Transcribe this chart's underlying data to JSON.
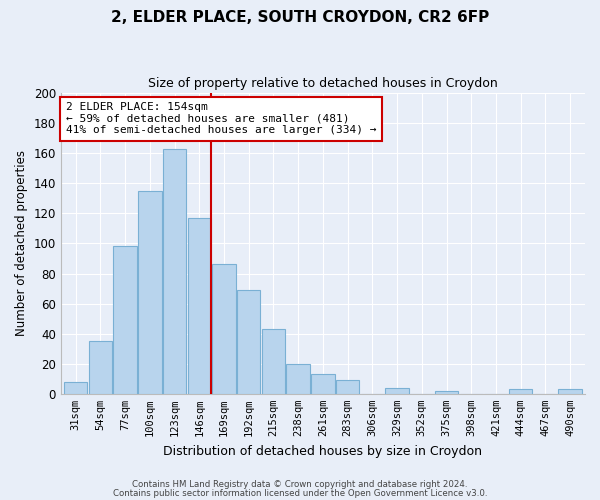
{
  "title": "2, ELDER PLACE, SOUTH CROYDON, CR2 6FP",
  "subtitle": "Size of property relative to detached houses in Croydon",
  "xlabel": "Distribution of detached houses by size in Croydon",
  "ylabel": "Number of detached properties",
  "bar_labels": [
    "31sqm",
    "54sqm",
    "77sqm",
    "100sqm",
    "123sqm",
    "146sqm",
    "169sqm",
    "192sqm",
    "215sqm",
    "238sqm",
    "261sqm",
    "283sqm",
    "306sqm",
    "329sqm",
    "352sqm",
    "375sqm",
    "398sqm",
    "421sqm",
    "444sqm",
    "467sqm",
    "490sqm"
  ],
  "bar_values": [
    8,
    35,
    98,
    135,
    163,
    117,
    86,
    69,
    43,
    20,
    13,
    9,
    0,
    4,
    0,
    2,
    0,
    0,
    3,
    0,
    3
  ],
  "bar_color": "#b8d4ed",
  "bar_edge_color": "#7ab0d4",
  "marker_bin_index": 5,
  "marker_line_color": "#cc0000",
  "ylim": [
    0,
    200
  ],
  "yticks": [
    0,
    20,
    40,
    60,
    80,
    100,
    120,
    140,
    160,
    180,
    200
  ],
  "annotation_title": "2 ELDER PLACE: 154sqm",
  "annotation_line1": "← 59% of detached houses are smaller (481)",
  "annotation_line2": "41% of semi-detached houses are larger (334) →",
  "annotation_box_color": "#ffffff",
  "annotation_box_edge": "#cc0000",
  "footer_line1": "Contains HM Land Registry data © Crown copyright and database right 2024.",
  "footer_line2": "Contains public sector information licensed under the Open Government Licence v3.0.",
  "background_color": "#e8eef8",
  "grid_color": "#ffffff",
  "title_fontsize": 11,
  "subtitle_fontsize": 9
}
